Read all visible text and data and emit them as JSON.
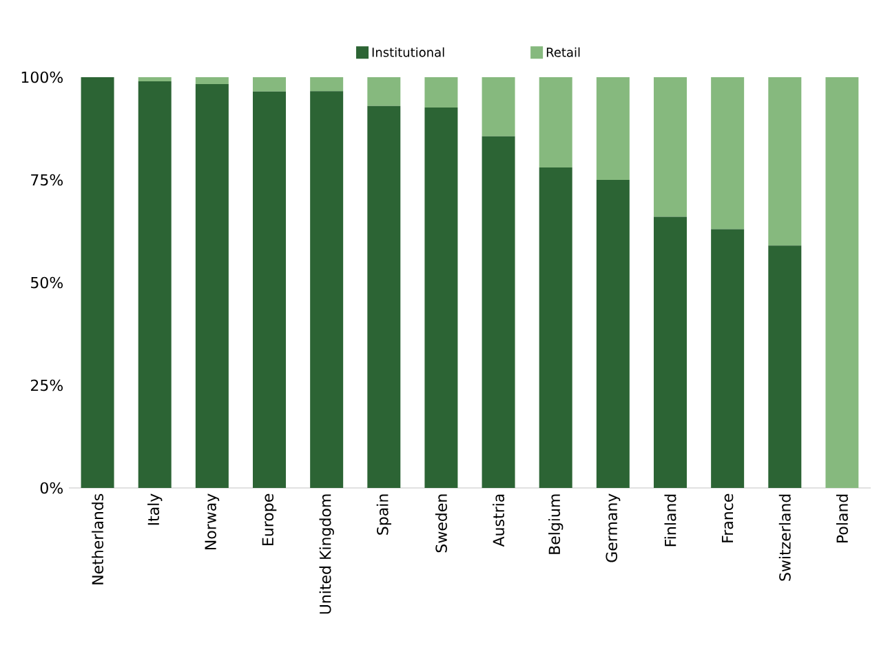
{
  "chart_data": {
    "type": "bar",
    "stacked": true,
    "legend": "top",
    "grid": false,
    "categories": [
      "Netherlands",
      "Italy",
      "Norway",
      "Europe",
      "United Kingdom",
      "Spain",
      "Sweden",
      "Austria",
      "Belgium",
      "Germany",
      "Finland",
      "France",
      "Switzerland",
      "Poland"
    ],
    "series": [
      {
        "name": "Institutional",
        "color": "#2c6434",
        "values": [
          100,
          99,
          98.3,
          96.5,
          96.6,
          93,
          92.6,
          85.6,
          78,
          75,
          66,
          63,
          59,
          0
        ]
      },
      {
        "name": "Retail",
        "color": "#86b97e",
        "values": [
          0,
          1,
          1.7,
          3.5,
          3.4,
          7,
          7.4,
          14.4,
          22,
          25,
          34,
          37,
          41,
          100
        ]
      }
    ],
    "ylim": [
      0,
      100
    ],
    "yticks": [
      {
        "value": 0,
        "label": "0%"
      },
      {
        "value": 25,
        "label": "25%"
      },
      {
        "value": 50,
        "label": "50%"
      },
      {
        "value": 75,
        "label": "75%"
      },
      {
        "value": 100,
        "label": "100%"
      }
    ]
  }
}
